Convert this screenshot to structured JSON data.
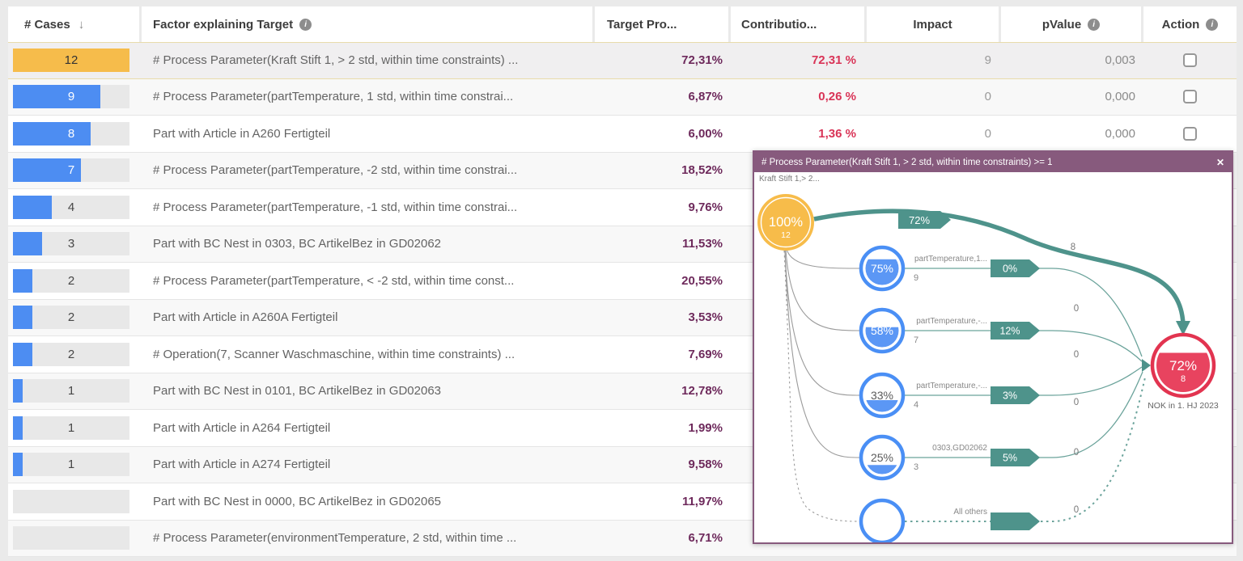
{
  "header": {
    "cases_label": "# Cases",
    "sort_icon": "↓",
    "factor_label": "Factor explaining Target",
    "target_label": "Target Pro...",
    "contribution_label": "Contributio...",
    "impact_label": "Impact",
    "pvalue_label": "pValue",
    "action_label": "Action",
    "info_icon": "i"
  },
  "table": {
    "max_cases": 12,
    "rows": [
      {
        "cases": "12",
        "bar_pct": 100,
        "bar_color": "orange",
        "selected": true,
        "factor": "# Process Parameter(Kraft Stift 1, > 2 std, within time constraints) ...",
        "target": "72,31%",
        "contribution": "72,31 %",
        "impact": "9",
        "pvalue": "0,003",
        "action_visible": true
      },
      {
        "cases": "9",
        "bar_pct": 75,
        "bar_color": "blue",
        "selected": false,
        "factor": "# Process Parameter(partTemperature, 1 std, within time constrai...",
        "target": "6,87%",
        "contribution": "0,26 %",
        "impact": "0",
        "pvalue": "0,000",
        "action_visible": true
      },
      {
        "cases": "8",
        "bar_pct": 67,
        "bar_color": "blue",
        "selected": false,
        "factor": "Part with Article in A260 Fertigteil",
        "target": "6,00%",
        "contribution": "1,36 %",
        "impact": "0",
        "pvalue": "0,000",
        "action_visible": true
      },
      {
        "cases": "7",
        "bar_pct": 58,
        "bar_color": "blue",
        "selected": false,
        "factor": "# Process Parameter(partTemperature, -2 std, within time constrai...",
        "target": "18,52%",
        "contribution": "",
        "impact": "",
        "pvalue": "",
        "action_visible": false
      },
      {
        "cases": "4",
        "bar_pct": 33,
        "bar_color": "blue",
        "selected": false,
        "factor": "# Process Parameter(partTemperature, -1 std, within time constrai...",
        "target": "9,76%",
        "contribution": "",
        "impact": "",
        "pvalue": "",
        "action_visible": false
      },
      {
        "cases": "3",
        "bar_pct": 25,
        "bar_color": "blue",
        "selected": false,
        "factor": "Part with BC Nest in 0303, BC ArtikelBez in GD02062",
        "target": "11,53%",
        "contribution": "",
        "impact": "",
        "pvalue": "",
        "action_visible": false
      },
      {
        "cases": "2",
        "bar_pct": 17,
        "bar_color": "blue",
        "selected": false,
        "factor": "# Process Parameter(partTemperature, < -2 std, within time const...",
        "target": "20,55%",
        "contribution": "",
        "impact": "",
        "pvalue": "",
        "action_visible": false
      },
      {
        "cases": "2",
        "bar_pct": 17,
        "bar_color": "blue",
        "selected": false,
        "factor": "Part with Article in A260A Fertigteil",
        "target": "3,53%",
        "contribution": "",
        "impact": "",
        "pvalue": "",
        "action_visible": false
      },
      {
        "cases": "2",
        "bar_pct": 17,
        "bar_color": "blue",
        "selected": false,
        "factor": "# Operation(7, Scanner Waschmaschine, within time constraints) ...",
        "target": "7,69%",
        "contribution": "",
        "impact": "",
        "pvalue": "",
        "action_visible": false
      },
      {
        "cases": "1",
        "bar_pct": 8,
        "bar_color": "blue",
        "selected": false,
        "factor": "Part with BC Nest in 0101, BC ArtikelBez in GD02063",
        "target": "12,78%",
        "contribution": "",
        "impact": "",
        "pvalue": "",
        "action_visible": false
      },
      {
        "cases": "1",
        "bar_pct": 8,
        "bar_color": "blue",
        "selected": false,
        "factor": "Part with Article in A264 Fertigteil",
        "target": "1,99%",
        "contribution": "",
        "impact": "",
        "pvalue": "",
        "action_visible": false
      },
      {
        "cases": "1",
        "bar_pct": 8,
        "bar_color": "blue",
        "selected": false,
        "factor": "Part with Article in A274 Fertigteil",
        "target": "9,58%",
        "contribution": "",
        "impact": "",
        "pvalue": "",
        "action_visible": false
      },
      {
        "cases": "",
        "bar_pct": 0,
        "bar_color": "blue",
        "selected": false,
        "factor": "Part with BC Nest in 0000, BC ArtikelBez in GD02065",
        "target": "11,97%",
        "contribution": "",
        "impact": "",
        "pvalue": "",
        "action_visible": false
      },
      {
        "cases": "",
        "bar_pct": 0,
        "bar_color": "blue",
        "selected": false,
        "factor": "# Process Parameter(environmentTemperature, 2 std, within time ...",
        "target": "6,71%",
        "contribution": "",
        "impact": "",
        "pvalue": "",
        "action_visible": false
      }
    ]
  },
  "overlay": {
    "title": "# Process Parameter(Kraft Stift 1, > 2 std, within time constraints) >= 1",
    "close_icon": "✕",
    "root": {
      "label": "Kraft Stift 1,> 2...",
      "pct": 100,
      "pct_text": "100%",
      "count": "12"
    },
    "direct_edge": {
      "badge": "72%",
      "out_count": "8"
    },
    "branches": [
      {
        "pct": 75,
        "pct_text": "75%",
        "count": "9",
        "label": "partTemperature,1...",
        "badge": "0%",
        "out_count": "0",
        "dashed": false
      },
      {
        "pct": 58,
        "pct_text": "58%",
        "count": "7",
        "label": "partTemperature,-...",
        "badge": "12%",
        "out_count": "0",
        "dashed": false
      },
      {
        "pct": 33,
        "pct_text": "33%",
        "count": "4",
        "label": "partTemperature,-...",
        "badge": "3%",
        "out_count": "0",
        "dashed": false
      },
      {
        "pct": 25,
        "pct_text": "25%",
        "count": "3",
        "label": "0303,GD02062",
        "badge": "5%",
        "out_count": "0",
        "dashed": false
      },
      {
        "pct": 0,
        "pct_text": "",
        "count": "",
        "label": "All others",
        "badge": "",
        "out_count": "0",
        "dashed": true
      }
    ],
    "target_node": {
      "pct": 72,
      "pct_text": "72%",
      "count": "8",
      "label": "NOK in 1. HJ 2023"
    }
  },
  "colors": {
    "bar_orange": "#f6bc4b",
    "bar_blue": "#4d8df2",
    "bar_track": "#e8e8e8",
    "target_text": "#6e2a5c",
    "contribution_text": "#d93457",
    "overlay_purple": "#875a7d",
    "teal": "#4e938b",
    "teal_light": "#6ba39b",
    "node_blue": "#4a8ff5",
    "node_blue_fill": "#5b97f5",
    "node_yellow": "#f7bc4a",
    "node_red": "#e23450",
    "node_red_fill": "#e8435f",
    "edge_gray": "#9b9b9b"
  }
}
